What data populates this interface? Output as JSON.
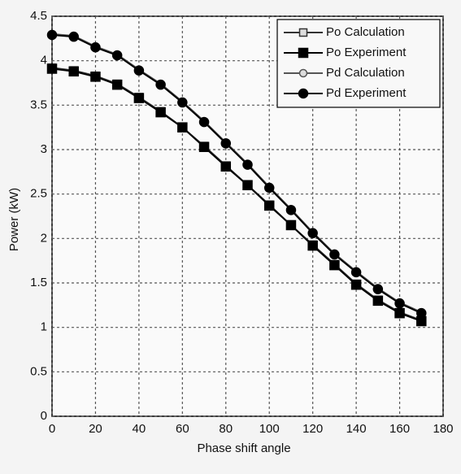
{
  "chart_data": {
    "type": "line",
    "xlabel": "Phase shift angle",
    "ylabel": "Power (kW)",
    "x": [
      0,
      10,
      20,
      30,
      40,
      50,
      60,
      70,
      80,
      90,
      100,
      110,
      120,
      130,
      140,
      150,
      160,
      170
    ],
    "series": [
      {
        "name": "Po Calculation",
        "color": "#333333",
        "marker": "square",
        "filled": false,
        "values": [
          3.92,
          3.89,
          3.83,
          3.74,
          3.59,
          3.43,
          3.25,
          3.04,
          2.82,
          2.6,
          2.38,
          2.15,
          1.93,
          1.71,
          1.49,
          1.31,
          1.17,
          1.08
        ]
      },
      {
        "name": "Po Experiment",
        "color": "#000000",
        "marker": "square",
        "filled": true,
        "values": [
          3.91,
          3.88,
          3.82,
          3.73,
          3.58,
          3.42,
          3.25,
          3.03,
          2.81,
          2.6,
          2.37,
          2.15,
          1.92,
          1.7,
          1.48,
          1.3,
          1.16,
          1.07
        ]
      },
      {
        "name": "Pd Calculation",
        "color": "#555555",
        "marker": "circle",
        "filled": false,
        "values": [
          4.3,
          4.28,
          4.16,
          4.07,
          3.9,
          3.74,
          3.54,
          3.32,
          3.08,
          2.84,
          2.58,
          2.33,
          2.07,
          1.83,
          1.63,
          1.44,
          1.28,
          1.17
        ]
      },
      {
        "name": "Pd Experiment",
        "color": "#000000",
        "marker": "circle",
        "filled": true,
        "values": [
          4.29,
          4.27,
          4.15,
          4.06,
          3.89,
          3.73,
          3.53,
          3.31,
          3.07,
          2.83,
          2.57,
          2.32,
          2.06,
          1.82,
          1.62,
          1.43,
          1.27,
          1.16
        ]
      }
    ],
    "xlim": [
      0,
      180
    ],
    "xticks": [
      0,
      20,
      40,
      60,
      80,
      100,
      120,
      140,
      160,
      180
    ],
    "ylim": [
      0,
      4.5
    ],
    "yticks": [
      0,
      0.5,
      1,
      1.5,
      2,
      2.5,
      3,
      3.5,
      4,
      4.5
    ],
    "grid": true,
    "legend": "top-right"
  }
}
